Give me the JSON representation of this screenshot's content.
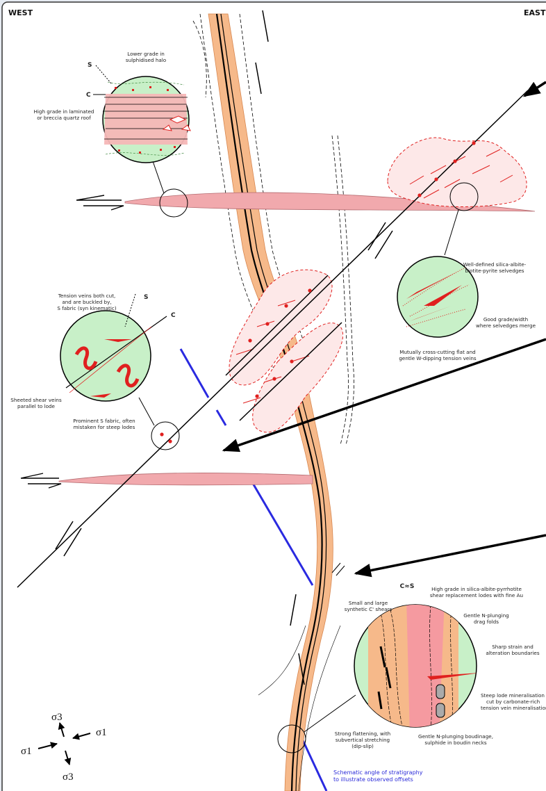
{
  "labels": {
    "west": "WEST",
    "east": "EAST"
  },
  "roof_inset": {
    "top": [
      "Lower grade in",
      "sulphidised halo"
    ],
    "s": "S",
    "c": "C",
    "left": [
      "High grade in laminated",
      "or breccia quartz roof"
    ]
  },
  "selvedge_inset": {
    "top": [
      "Well-defined silica-albite-",
      "biotite-pyrite selvedges"
    ],
    "right": [
      "Good grade/width",
      "where selvedges merge"
    ],
    "bottom": [
      "Mutually cross-cutting flat and",
      "gentle W-dipping tension veins"
    ]
  },
  "fabric_inset": {
    "top": [
      "Tension veins both cut,",
      "and are buckled by,",
      "S fabric (syn kinematic)"
    ],
    "s": "S",
    "c": "C",
    "left": [
      "Sheeted shear veins",
      "parallel to lode"
    ],
    "bottom": [
      "Prominent S fabric, often",
      "mistaken for steep lodes"
    ]
  },
  "lode_inset": {
    "cs": "C≈S",
    "top": [
      "High grade in silica-albite-pyrrhotite",
      "shear replacement lodes with fine Au"
    ],
    "shears": [
      "Small and large",
      "synthetic C' shears"
    ],
    "drag": [
      "Gentle N-plunging",
      "drag folds"
    ],
    "sharp": [
      "Sharp strain and",
      "alteration boundaries"
    ],
    "steep": [
      "Steep lode mineralisation",
      "cut by carbonate-rich",
      "tension vein mineralisation"
    ],
    "flattening": [
      "Strong flattening, with",
      "subvertical stretching",
      "(dip-slip)"
    ],
    "boudinage": [
      "Gentle N-plunging boudinage,",
      "sulphide in boudin necks"
    ]
  },
  "stratigraphy_note": [
    "Schematic angle of stratigraphy",
    "to illustrate observed offsets"
  ],
  "stress": {
    "sigma3_top": "σ3",
    "sigma1_right": "σ1",
    "sigma1_left": "σ1",
    "sigma3_bottom": "σ3"
  }
}
